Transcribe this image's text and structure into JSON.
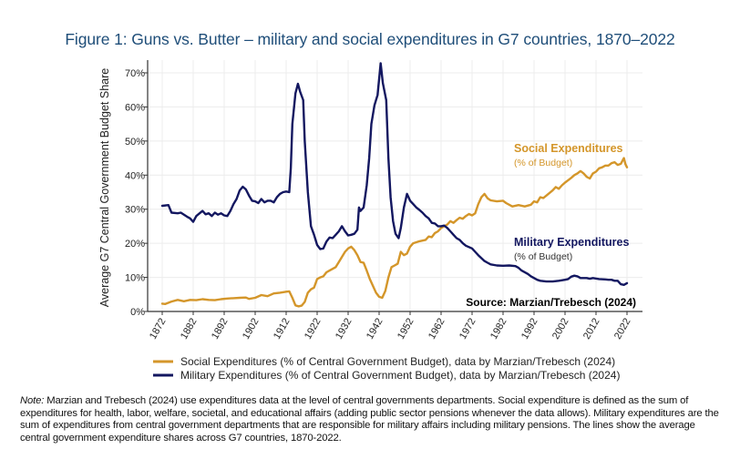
{
  "figure": {
    "title": "Figure 1: Guns vs. Butter – military and social expenditures in G7 countries, 1870–2022",
    "note_label": "Note:",
    "note_text": " Marzian and Trebesch (2024) use expenditures data at the level of central governments departments. Social expenditure is defined as the sum of expenditures for health, labor, welfare, societal, and educational affairs (adding public sector pensions whenever the data allows). Military expenditures are the sum of expenditures from central government departments that are responsible for military affairs including military pensions. The lines show the average central government expenditure shares across G7 countries, 1870-2022."
  },
  "colors": {
    "social": "#d4962a",
    "military": "#131760",
    "title": "#1f4e79",
    "grid": "#ececec"
  },
  "chart_data": {
    "type": "line",
    "title": "Figure 1: Guns vs. Butter – military and social expenditures in G7 countries, 1870–2022",
    "xlabel": "",
    "ylabel": "Average G7 Central Government Budget Share",
    "xlim": [
      1872,
      2022
    ],
    "ylim": [
      0,
      70
    ],
    "x_ticks": [
      1872,
      1882,
      1892,
      1902,
      1912,
      1922,
      1932,
      1942,
      1952,
      1962,
      1972,
      1982,
      1992,
      2002,
      2012,
      2022
    ],
    "y_ticks": [
      0,
      10,
      20,
      30,
      40,
      50,
      60,
      70
    ],
    "y_tick_labels": [
      "0%",
      "10%",
      "20%",
      "30%",
      "40%",
      "50%",
      "60%",
      "70%"
    ],
    "grid": true,
    "legend_position": "bottom",
    "source_annotation": "Source: Marzian/Trebesch (2024)",
    "series": [
      {
        "name": "Social Expenditures (% of Central Government Budget), data by Marzian/Trebesch (2024)",
        "label_title": "Social Expenditures",
        "label_sub": "(% of Budget)",
        "color": "#d4962a",
        "points": [
          [
            1872,
            2.3
          ],
          [
            1873,
            2.2
          ],
          [
            1875,
            2.9
          ],
          [
            1877,
            3.4
          ],
          [
            1879,
            3.0
          ],
          [
            1881,
            3.4
          ],
          [
            1883,
            3.3
          ],
          [
            1885,
            3.6
          ],
          [
            1887,
            3.4
          ],
          [
            1889,
            3.3
          ],
          [
            1891,
            3.6
          ],
          [
            1893,
            3.8
          ],
          [
            1895,
            3.9
          ],
          [
            1897,
            4.0
          ],
          [
            1899,
            4.1
          ],
          [
            1900,
            3.7
          ],
          [
            1902,
            4.0
          ],
          [
            1904,
            4.8
          ],
          [
            1906,
            4.5
          ],
          [
            1908,
            5.3
          ],
          [
            1910,
            5.5
          ],
          [
            1912,
            5.8
          ],
          [
            1913,
            5.9
          ],
          [
            1914,
            4.0
          ],
          [
            1915,
            1.8
          ],
          [
            1916,
            1.5
          ],
          [
            1917,
            1.7
          ],
          [
            1918,
            2.8
          ],
          [
            1919,
            5.5
          ],
          [
            1920,
            6.5
          ],
          [
            1921,
            7.0
          ],
          [
            1922,
            9.5
          ],
          [
            1923,
            10.0
          ],
          [
            1924,
            10.3
          ],
          [
            1925,
            11.5
          ],
          [
            1926,
            12.0
          ],
          [
            1927,
            12.5
          ],
          [
            1928,
            13.0
          ],
          [
            1929,
            14.5
          ],
          [
            1930,
            16.0
          ],
          [
            1931,
            17.5
          ],
          [
            1932,
            18.5
          ],
          [
            1933,
            19.0
          ],
          [
            1934,
            18.0
          ],
          [
            1935,
            16.5
          ],
          [
            1936,
            14.5
          ],
          [
            1937,
            14.3
          ],
          [
            1938,
            12.0
          ],
          [
            1939,
            9.5
          ],
          [
            1940,
            7.5
          ],
          [
            1941,
            5.5
          ],
          [
            1942,
            4.3
          ],
          [
            1943,
            4.0
          ],
          [
            1944,
            6.0
          ],
          [
            1945,
            10.0
          ],
          [
            1946,
            13.0
          ],
          [
            1947,
            13.5
          ],
          [
            1948,
            14.0
          ],
          [
            1949,
            17.5
          ],
          [
            1950,
            16.5
          ],
          [
            1951,
            17.0
          ],
          [
            1952,
            19.0
          ],
          [
            1953,
            20.0
          ],
          [
            1955,
            20.6
          ],
          [
            1957,
            21.0
          ],
          [
            1958,
            22.0
          ],
          [
            1959,
            21.8
          ],
          [
            1960,
            23.0
          ],
          [
            1961,
            23.5
          ],
          [
            1962,
            24.5
          ],
          [
            1963,
            25.0
          ],
          [
            1964,
            25.5
          ],
          [
            1965,
            26.5
          ],
          [
            1966,
            26.0
          ],
          [
            1967,
            26.8
          ],
          [
            1968,
            27.5
          ],
          [
            1969,
            27.2
          ],
          [
            1970,
            28.0
          ],
          [
            1971,
            28.6
          ],
          [
            1972,
            28.2
          ],
          [
            1973,
            28.8
          ],
          [
            1974,
            31.5
          ],
          [
            1975,
            33.5
          ],
          [
            1976,
            34.5
          ],
          [
            1977,
            33.2
          ],
          [
            1978,
            32.6
          ],
          [
            1980,
            32.3
          ],
          [
            1982,
            32.5
          ],
          [
            1983,
            31.8
          ],
          [
            1985,
            30.8
          ],
          [
            1987,
            31.2
          ],
          [
            1989,
            30.8
          ],
          [
            1991,
            31.3
          ],
          [
            1992,
            32.3
          ],
          [
            1993,
            32.0
          ],
          [
            1994,
            33.5
          ],
          [
            1995,
            33.3
          ],
          [
            1996,
            34.0
          ],
          [
            1998,
            35.5
          ],
          [
            1999,
            36.5
          ],
          [
            2000,
            36.0
          ],
          [
            2001,
            37.0
          ],
          [
            2002,
            37.8
          ],
          [
            2003,
            38.5
          ],
          [
            2004,
            39.2
          ],
          [
            2005,
            40.0
          ],
          [
            2006,
            40.5
          ],
          [
            2007,
            41.2
          ],
          [
            2008,
            40.5
          ],
          [
            2009,
            39.5
          ],
          [
            2010,
            39.0
          ],
          [
            2011,
            40.5
          ],
          [
            2012,
            41.0
          ],
          [
            2013,
            42.0
          ],
          [
            2014,
            42.3
          ],
          [
            2015,
            42.8
          ],
          [
            2016,
            42.8
          ],
          [
            2017,
            43.5
          ],
          [
            2018,
            43.8
          ],
          [
            2019,
            43.0
          ],
          [
            2020,
            43.3
          ],
          [
            2021,
            45.0
          ],
          [
            2021.5,
            43.2
          ],
          [
            2022,
            42.3
          ]
        ]
      },
      {
        "name": "Military Expenditures (% of Central Government Budget), data by Marzian/Trebesch (2024)",
        "label_title": "Military Expenditures",
        "label_sub": "(% of Budget)",
        "color": "#131760",
        "points": [
          [
            1872,
            31.0
          ],
          [
            1874,
            31.2
          ],
          [
            1875,
            29.0
          ],
          [
            1877,
            28.8
          ],
          [
            1878,
            29.0
          ],
          [
            1880,
            27.8
          ],
          [
            1881,
            27.3
          ],
          [
            1882,
            26.3
          ],
          [
            1883,
            28.0
          ],
          [
            1885,
            29.5
          ],
          [
            1886,
            28.5
          ],
          [
            1887,
            28.8
          ],
          [
            1888,
            28.0
          ],
          [
            1889,
            29.0
          ],
          [
            1890,
            28.4
          ],
          [
            1891,
            28.8
          ],
          [
            1892,
            28.2
          ],
          [
            1893,
            28.0
          ],
          [
            1894,
            29.5
          ],
          [
            1895,
            31.5
          ],
          [
            1896,
            33.0
          ],
          [
            1897,
            35.5
          ],
          [
            1898,
            36.6
          ],
          [
            1899,
            35.8
          ],
          [
            1900,
            34.0
          ],
          [
            1901,
            32.5
          ],
          [
            1902,
            32.3
          ],
          [
            1903,
            31.8
          ],
          [
            1904,
            33.0
          ],
          [
            1905,
            32.0
          ],
          [
            1906,
            32.5
          ],
          [
            1907,
            32.5
          ],
          [
            1908,
            32.0
          ],
          [
            1909,
            33.5
          ],
          [
            1910,
            34.5
          ],
          [
            1911,
            35.0
          ],
          [
            1912,
            35.2
          ],
          [
            1913,
            35.0
          ],
          [
            1913.5,
            42.0
          ],
          [
            1914,
            55.0
          ],
          [
            1915,
            64.0
          ],
          [
            1915.8,
            66.8
          ],
          [
            1916.5,
            64.5
          ],
          [
            1917.5,
            62.0
          ],
          [
            1918,
            50.0
          ],
          [
            1919,
            35.0
          ],
          [
            1920,
            25.0
          ],
          [
            1921,
            22.5
          ],
          [
            1922,
            19.5
          ],
          [
            1923,
            18.3
          ],
          [
            1924,
            18.5
          ],
          [
            1925,
            20.5
          ],
          [
            1926,
            21.7
          ],
          [
            1927,
            21.5
          ],
          [
            1928,
            22.5
          ],
          [
            1929,
            23.5
          ],
          [
            1930,
            25.0
          ],
          [
            1931,
            23.5
          ],
          [
            1932,
            22.3
          ],
          [
            1933,
            22.5
          ],
          [
            1934,
            22.8
          ],
          [
            1935,
            24.0
          ],
          [
            1935.5,
            30.5
          ],
          [
            1936,
            29.5
          ],
          [
            1937,
            30.5
          ],
          [
            1938,
            37.0
          ],
          [
            1938.8,
            45.0
          ],
          [
            1939.5,
            55.0
          ],
          [
            1940.5,
            60.5
          ],
          [
            1941.5,
            63.5
          ],
          [
            1942.5,
            72.8
          ],
          [
            1943.2,
            67.0
          ],
          [
            1944.3,
            62.0
          ],
          [
            1945,
            45.0
          ],
          [
            1945.7,
            33.5
          ],
          [
            1946.5,
            26.5
          ],
          [
            1947.3,
            22.8
          ],
          [
            1948.3,
            21.5
          ],
          [
            1949,
            24.5
          ],
          [
            1950,
            30.5
          ],
          [
            1951,
            34.5
          ],
          [
            1952,
            32.5
          ],
          [
            1953,
            31.5
          ],
          [
            1954,
            30.5
          ],
          [
            1955,
            29.8
          ],
          [
            1956,
            29.0
          ],
          [
            1957,
            28.0
          ],
          [
            1958,
            27.3
          ],
          [
            1959,
            26.0
          ],
          [
            1960,
            25.8
          ],
          [
            1961,
            25.0
          ],
          [
            1962,
            25.0
          ],
          [
            1963,
            25.2
          ],
          [
            1964,
            24.5
          ],
          [
            1965,
            23.5
          ],
          [
            1966,
            22.5
          ],
          [
            1967,
            21.5
          ],
          [
            1968,
            21.0
          ],
          [
            1969,
            20.0
          ],
          [
            1970,
            19.3
          ],
          [
            1972,
            18.5
          ],
          [
            1973,
            17.5
          ],
          [
            1974,
            16.5
          ],
          [
            1976,
            14.8
          ],
          [
            1977,
            14.3
          ],
          [
            1978,
            13.8
          ],
          [
            1980,
            13.5
          ],
          [
            1982,
            13.4
          ],
          [
            1984,
            13.5
          ],
          [
            1986,
            13.3
          ],
          [
            1987,
            12.8
          ],
          [
            1988,
            12.0
          ],
          [
            1990,
            11.0
          ],
          [
            1991,
            10.3
          ],
          [
            1992,
            9.8
          ],
          [
            1993,
            9.3
          ],
          [
            1994,
            9.0
          ],
          [
            1996,
            8.8
          ],
          [
            1998,
            8.8
          ],
          [
            2000,
            9.0
          ],
          [
            2002,
            9.3
          ],
          [
            2003,
            9.5
          ],
          [
            2004,
            10.2
          ],
          [
            2005,
            10.5
          ],
          [
            2006,
            10.3
          ],
          [
            2007,
            9.8
          ],
          [
            2009,
            9.8
          ],
          [
            2010,
            9.6
          ],
          [
            2011,
            9.8
          ],
          [
            2013,
            9.5
          ],
          [
            2015,
            9.4
          ],
          [
            2016,
            9.3
          ],
          [
            2017,
            9.3
          ],
          [
            2018,
            9.0
          ],
          [
            2019,
            9.0
          ],
          [
            2020,
            8.0
          ],
          [
            2021,
            7.8
          ],
          [
            2022,
            8.3
          ]
        ]
      }
    ]
  }
}
